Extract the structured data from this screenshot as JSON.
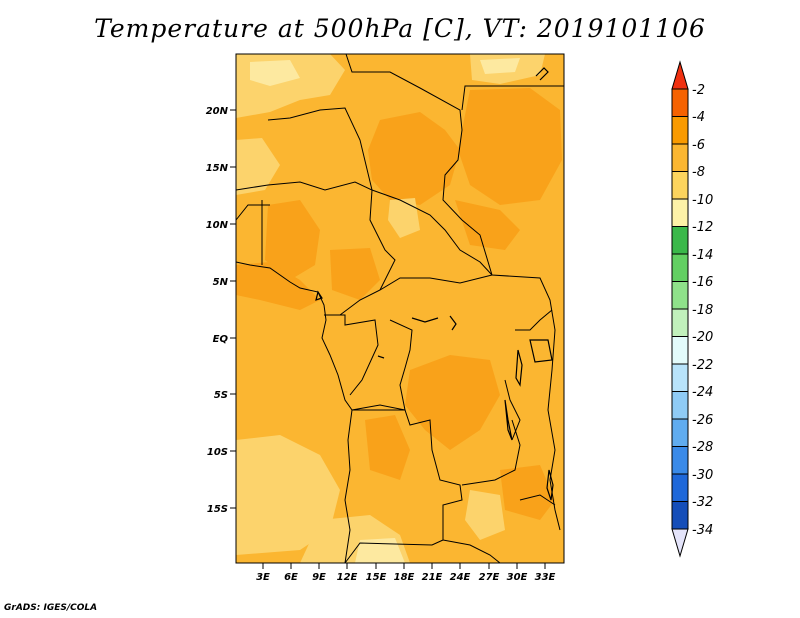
{
  "title": "Temperature at 500hPa [C], VT: 2019101106",
  "credit": "GrADS: IGES/COLA",
  "map": {
    "lat_labels": [
      "20N",
      "15N",
      "10N",
      "5N",
      "EQ",
      "5S",
      "10S",
      "15S"
    ],
    "lon_labels": [
      "3E",
      "6E",
      "9E",
      "12E",
      "15E",
      "18E",
      "21E",
      "24E",
      "27E",
      "30E",
      "33E"
    ]
  },
  "colorbar": {
    "labels": [
      "-2",
      "-4",
      "-6",
      "-8",
      "-10",
      "-12",
      "-14",
      "-16",
      "-18",
      "-20",
      "-22",
      "-24",
      "-26",
      "-28",
      "-30",
      "-32",
      "-34"
    ],
    "colors": [
      "#f03010",
      "#f56200",
      "#f99a00",
      "#fbb631",
      "#fcd45e",
      "#fdf2a8",
      "#3ab84a",
      "#62d062",
      "#8fe28a",
      "#c1f1bc",
      "#e3fbfb",
      "#b8e3fa",
      "#8fcbf5",
      "#60acef",
      "#3a8ae8",
      "#1f68d9",
      "#154eb9",
      "#0b1f7c",
      "#e4e4fa"
    ]
  }
}
